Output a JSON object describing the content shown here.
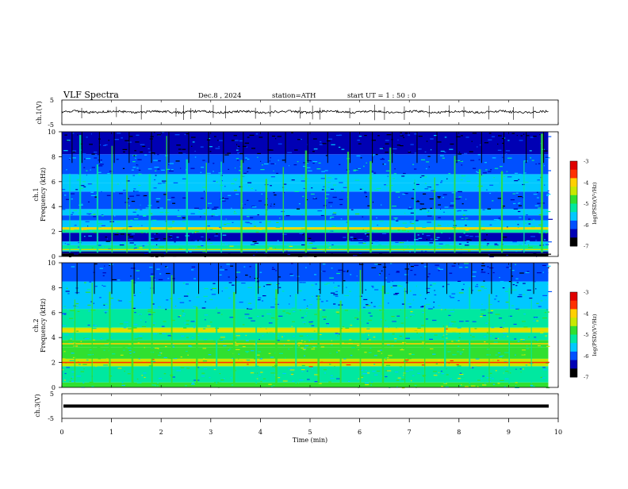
{
  "header": {
    "title": "VLF  Spectra",
    "date": "Dec.8  , 2024",
    "station": "station=ATH",
    "start": "start  UT  =   1  : 50 : 0"
  },
  "colors": {
    "background": "#ffffff",
    "trace": "#000000",
    "colormap": [
      "#000000",
      "#0000b4",
      "#0050ff",
      "#00c8ff",
      "#00e8a0",
      "#30e030",
      "#c8e800",
      "#ffd000",
      "#ff3000",
      "#e00000",
      "#ffffff"
    ]
  },
  "chart_data": [
    {
      "type": "line",
      "name": "ch1-waveform",
      "ylabel": "ch.1(V)",
      "ylim": [
        -5,
        5
      ],
      "yticks": [
        "5",
        "-5"
      ],
      "xlim": [
        0,
        10
      ],
      "baseline": 0.2,
      "burst_times": [
        0.4,
        1.1,
        1.6,
        2.3,
        2.45,
        2.6,
        3.05,
        3.3,
        3.9,
        4.2,
        4.8,
        5.05,
        5.2,
        5.8,
        6.3,
        6.5,
        6.9,
        7.4,
        7.8,
        8.1,
        8.6,
        9.1,
        9.5
      ]
    },
    {
      "type": "heatmap",
      "name": "ch1-spectrogram",
      "ylabel": "Frequency  (kHz)",
      "channel_label": "ch.1",
      "ylim": [
        0,
        10
      ],
      "yticks": [
        "0",
        "2",
        "4",
        "6",
        "8",
        "10"
      ],
      "xlim": [
        0,
        9.8
      ],
      "zlim": [
        -7,
        -3
      ],
      "colorbar_label": "log(PSD)(V²/Hz)",
      "colorbar_ticks": [
        "-3",
        "-4",
        "-5",
        "-6",
        "-7"
      ],
      "bands": [
        {
          "f0": 0,
          "f1": 0.2,
          "level": -7
        },
        {
          "f0": 0.2,
          "f1": 0.4,
          "level": -6.8
        },
        {
          "f0": 0.4,
          "f1": 0.6,
          "level": -5.5
        },
        {
          "f0": 0.6,
          "f1": 0.9,
          "level": -5.2
        },
        {
          "f0": 0.9,
          "f1": 1.2,
          "level": -5.7
        },
        {
          "f0": 1.2,
          "f1": 1.9,
          "level": -6.3
        },
        {
          "f0": 1.9,
          "f1": 2.15,
          "level": -5.3
        },
        {
          "f0": 2.15,
          "f1": 2.35,
          "level": -4.6
        },
        {
          "f0": 2.35,
          "f1": 2.9,
          "level": -5.6
        },
        {
          "f0": 2.9,
          "f1": 3.3,
          "level": -5.9
        },
        {
          "f0": 3.3,
          "f1": 3.8,
          "level": -5.5
        },
        {
          "f0": 3.8,
          "f1": 5.2,
          "level": -6.1
        },
        {
          "f0": 5.2,
          "f1": 5.9,
          "level": -5.7
        },
        {
          "f0": 5.9,
          "f1": 6.6,
          "level": -5.8
        },
        {
          "f0": 6.6,
          "f1": 8.2,
          "level": -5.9
        },
        {
          "f0": 8.2,
          "f1": 10,
          "level": -6.4
        }
      ],
      "lines": [
        {
          "f": 0.3,
          "level": -6.5
        },
        {
          "f": 0.55,
          "level": -4.6
        },
        {
          "f": 2.25,
          "level": -4.2
        }
      ],
      "burst_times": [
        0.15,
        0.35,
        0.7,
        1.0,
        1.3,
        1.75,
        2.1,
        2.5,
        2.9,
        3.2,
        3.6,
        4.1,
        4.45,
        4.9,
        5.3,
        5.75,
        6.2,
        6.6,
        7.1,
        7.5,
        7.9,
        8.4,
        8.85,
        9.3,
        9.65
      ]
    },
    {
      "type": "heatmap",
      "name": "ch2-spectrogram",
      "ylabel": "Frequency  (kHz)",
      "channel_label": "ch.2",
      "ylim": [
        0,
        10
      ],
      "yticks": [
        "0",
        "2",
        "4",
        "6",
        "8",
        "10"
      ],
      "xlim": [
        0,
        9.8
      ],
      "zlim": [
        -7,
        -3
      ],
      "colorbar_label": "log(PSD)(V²/Hz)",
      "colorbar_ticks": [
        "-3",
        "-4",
        "-5",
        "-6",
        "-7"
      ],
      "bands": [
        {
          "f0": 0,
          "f1": 0.4,
          "level": -5.0
        },
        {
          "f0": 0.4,
          "f1": 1.7,
          "level": -5.2
        },
        {
          "f0": 1.7,
          "f1": 2.3,
          "level": -4.4
        },
        {
          "f0": 2.3,
          "f1": 3.2,
          "level": -5.0
        },
        {
          "f0": 3.2,
          "f1": 3.8,
          "level": -4.8
        },
        {
          "f0": 3.8,
          "f1": 4.4,
          "level": -5.2
        },
        {
          "f0": 4.4,
          "f1": 4.8,
          "level": -4.5
        },
        {
          "f0": 4.8,
          "f1": 6.3,
          "level": -5.3
        },
        {
          "f0": 6.3,
          "f1": 8.5,
          "level": -5.7
        },
        {
          "f0": 8.5,
          "f1": 10,
          "level": -6.1
        }
      ],
      "lines": [
        {
          "f": 2.0,
          "level": -3.6
        },
        {
          "f": 3.5,
          "level": -4.0
        },
        {
          "f": 4.6,
          "level": -3.9
        }
      ],
      "burst_times": [
        0.25,
        0.6,
        0.95,
        1.4,
        1.8,
        2.2,
        2.7,
        3.1,
        3.45,
        3.9,
        4.3,
        4.7,
        5.15,
        5.6,
        6.0,
        6.45,
        6.9,
        7.3,
        7.7,
        8.2,
        8.6,
        9.0,
        9.45
      ]
    },
    {
      "type": "line",
      "name": "ch3-waveform",
      "ylabel": "ch.3(V)",
      "ylim": [
        -5,
        5
      ],
      "yticks": [
        "5",
        "-5"
      ],
      "xlim": [
        0,
        10
      ],
      "baseline": 0,
      "burst_times": []
    }
  ],
  "xaxis": {
    "label": "Time  (min)",
    "ticks": [
      "0",
      "1",
      "2",
      "3",
      "4",
      "5",
      "6",
      "7",
      "8",
      "9",
      "10"
    ],
    "xlim": [
      0,
      10
    ]
  }
}
